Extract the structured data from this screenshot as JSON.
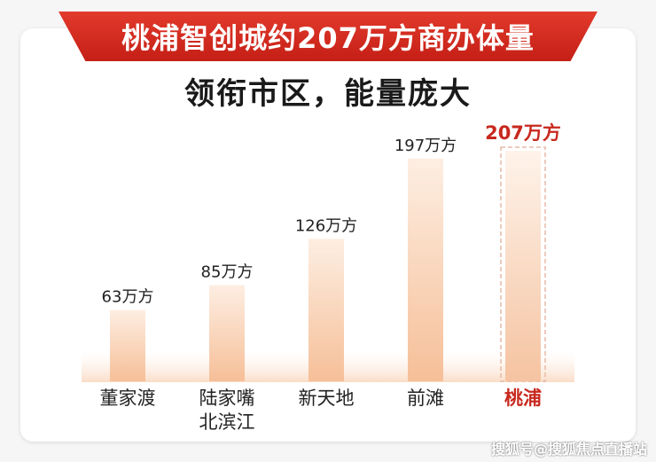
{
  "header": {
    "banner_title": "桃浦智创城约207万方商办体量",
    "subtitle": "领衔市区，能量庞大"
  },
  "chart_data": {
    "type": "bar",
    "title": "桃浦智创城约207万方商办体量",
    "subtitle": "领衔市区，能量庞大",
    "categories": [
      "董家渡",
      "陆家嘴\n北滨江",
      "新天地",
      "前滩",
      "桃浦"
    ],
    "values": [
      63,
      85,
      126,
      197,
      207
    ],
    "value_labels": [
      "63万方",
      "85万方",
      "126万方",
      "197万方",
      "207万方"
    ],
    "unit": "万方",
    "ylim": [
      0,
      207
    ],
    "highlight_index": 4,
    "grid": false,
    "legend": "none"
  },
  "colors": {
    "banner": "#d22a1f",
    "bar_top": "#fdeadb",
    "bar_bottom": "#f7c29d",
    "label": "#222222",
    "highlight": "#c8281e",
    "highlight_border": "#e8b9a6"
  },
  "footer": {
    "watermark": "搜狐号@搜狐焦点直播站"
  }
}
